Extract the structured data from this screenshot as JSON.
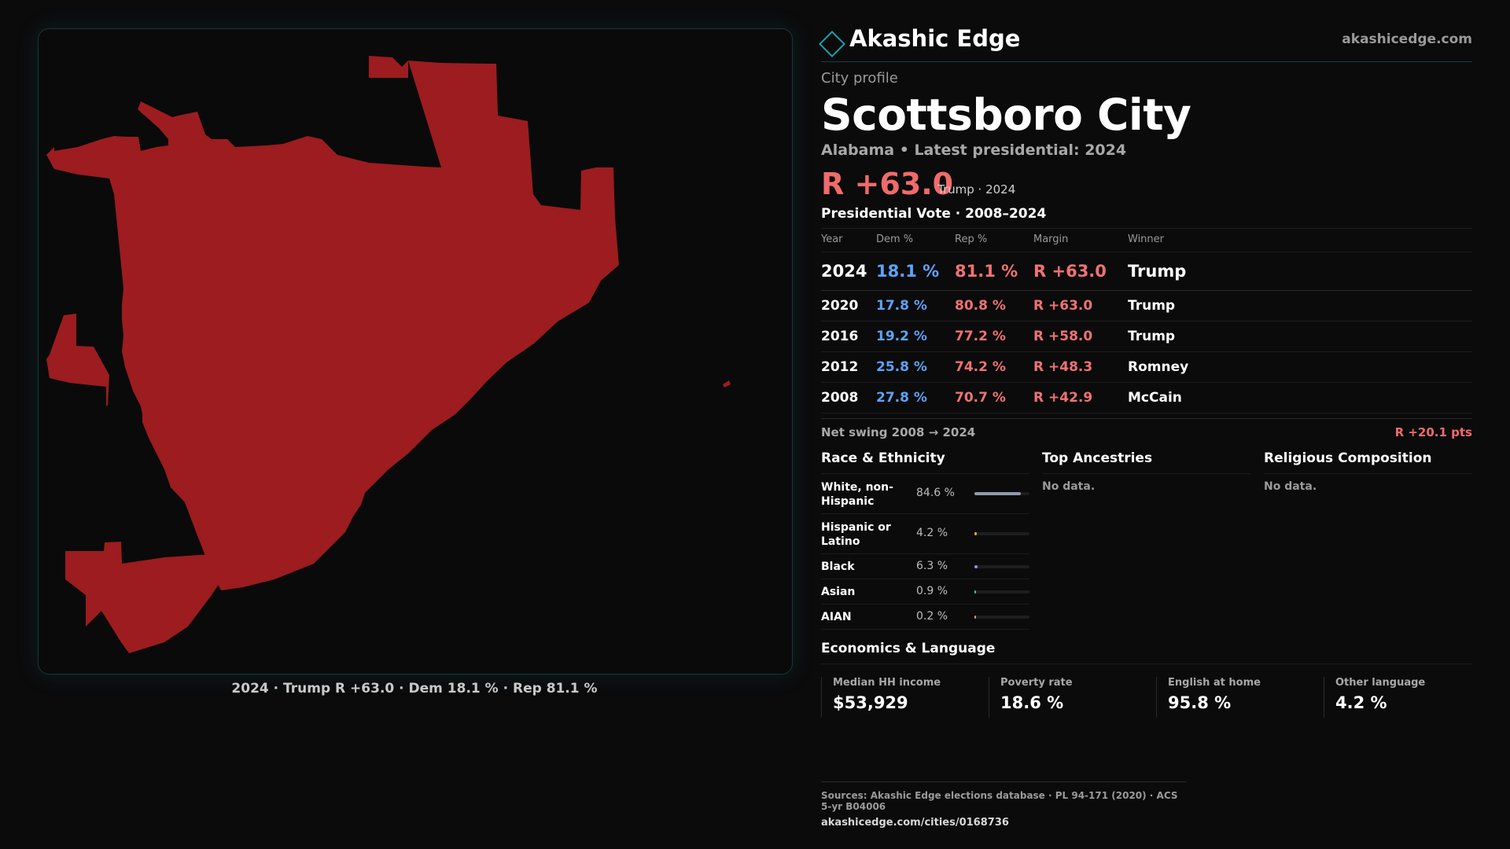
{
  "brand": {
    "name": "Akashic Edge",
    "url": "akashicedge.com"
  },
  "profile": {
    "eyebrow": "City profile",
    "city": "Scottsboro City",
    "subtitle": "Alabama • Latest presidential: 2024",
    "headline_margin": "R +63.0",
    "headline_note": "Trump · 2024"
  },
  "map": {
    "fill_color": "#9c1c1f",
    "caption": "2024 · Trump R +63.0 · Dem 18.1 % · Rep 81.1 %"
  },
  "votes": {
    "title": "Presidential Vote · 2008–2024",
    "headers": [
      "Year",
      "Dem %",
      "Rep %",
      "Margin",
      "Winner"
    ],
    "rows": [
      {
        "year": "2024",
        "dem": "18.1 %",
        "rep": "81.1 %",
        "margin": "R +63.0",
        "winner": "Trump"
      },
      {
        "year": "2020",
        "dem": "17.8 %",
        "rep": "80.8 %",
        "margin": "R +63.0",
        "winner": "Trump"
      },
      {
        "year": "2016",
        "dem": "19.2 %",
        "rep": "77.2 %",
        "margin": "R +58.0",
        "winner": "Trump"
      },
      {
        "year": "2012",
        "dem": "25.8 %",
        "rep": "74.2 %",
        "margin": "R +48.3",
        "winner": "Romney"
      },
      {
        "year": "2008",
        "dem": "27.8 %",
        "rep": "70.7 %",
        "margin": "R +42.9",
        "winner": "McCain"
      }
    ],
    "swing_label": "Net swing 2008 → 2024",
    "swing_value": "R +20.1 pts"
  },
  "race": {
    "title": "Race & Ethnicity",
    "rows": [
      {
        "label": "White, non-Hispanic",
        "pct": "84.6 %",
        "value": 84.6,
        "color": "#8f9aae"
      },
      {
        "label": "Hispanic or Latino",
        "pct": "4.2 %",
        "value": 4.2,
        "color": "#e5a63a"
      },
      {
        "label": "Black",
        "pct": "6.3 %",
        "value": 6.3,
        "color": "#9d8ee8"
      },
      {
        "label": "Asian",
        "pct": "0.9 %",
        "value": 0.9,
        "color": "#5ab8b0"
      },
      {
        "label": "AIAN",
        "pct": "0.2 %",
        "value": 0.2,
        "color": "#c9a46a"
      }
    ]
  },
  "ancestries": {
    "title": "Top Ancestries",
    "empty": "No data."
  },
  "religion": {
    "title": "Religious Composition",
    "empty": "No data."
  },
  "economics": {
    "title": "Economics & Language",
    "cells": [
      {
        "label": "Median HH income",
        "value": "$53,929"
      },
      {
        "label": "Poverty rate",
        "value": "18.6 %"
      },
      {
        "label": "English at home",
        "value": "95.8 %"
      },
      {
        "label": "Other language",
        "value": "4.2 %"
      }
    ]
  },
  "sources": {
    "text": "Sources: Akashic Edge elections database · PL 94-171 (2020) · ACS 5-yr B04006",
    "url": "akashicedge.com/cities/0168736"
  }
}
